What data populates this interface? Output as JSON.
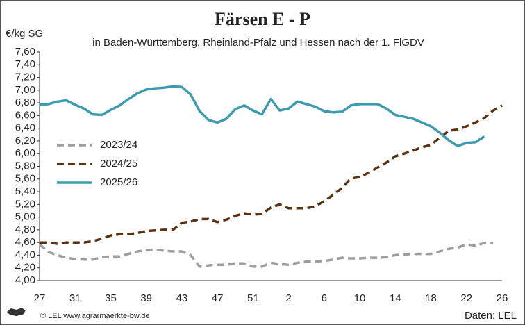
{
  "chart_data": {
    "type": "line",
    "title": "Färsen E - P",
    "subtitle": "in Baden-Württemberg, Rheinland-Pfalz und Hessen nach der 1. FlGDV",
    "y_label": "€/kg SG",
    "source": "Daten: LEL",
    "credit": "© LEL www.agrarmaerkte-bw.de",
    "legend": "left",
    "categories": [
      27,
      null,
      null,
      null,
      31,
      null,
      null,
      null,
      35,
      null,
      null,
      null,
      39,
      null,
      null,
      null,
      43,
      null,
      null,
      null,
      47,
      null,
      null,
      null,
      51,
      null,
      null,
      null,
      2,
      null,
      null,
      null,
      6,
      null,
      null,
      null,
      10,
      null,
      null,
      null,
      14,
      null,
      null,
      null,
      18,
      null,
      null,
      null,
      22,
      null,
      null,
      null,
      26
    ],
    "ylim": [
      4.0,
      7.6
    ],
    "yticks": [
      {
        "value": 4.0,
        "label": "4,00"
      },
      {
        "value": 4.2,
        "label": "4,20"
      },
      {
        "value": 4.4,
        "label": "4,40"
      },
      {
        "value": 4.6,
        "label": "4,60"
      },
      {
        "value": 4.8,
        "label": "4,80"
      },
      {
        "value": 5.0,
        "label": "5,00"
      },
      {
        "value": 5.2,
        "label": "5,20"
      },
      {
        "value": 5.4,
        "label": "5,40"
      },
      {
        "value": 5.6,
        "label": "5,60"
      },
      {
        "value": 5.8,
        "label": "5,80"
      },
      {
        "value": 6.0,
        "label": "6,00"
      },
      {
        "value": 6.2,
        "label": "6,20"
      },
      {
        "value": 6.4,
        "label": "6,40"
      },
      {
        "value": 6.6,
        "label": "6,60"
      },
      {
        "value": 6.8,
        "label": "6,80"
      },
      {
        "value": 7.0,
        "label": "7,00"
      },
      {
        "value": 7.2,
        "label": "7,20"
      },
      {
        "value": 7.4,
        "label": "7,40"
      },
      {
        "value": 7.6,
        "label": "7,60"
      }
    ],
    "series": [
      {
        "name": "2023/24",
        "color": "#9e9e9e",
        "dash": true,
        "values": [
          4.57,
          4.45,
          4.4,
          4.36,
          4.34,
          4.33,
          4.33,
          4.37,
          4.38,
          4.38,
          4.42,
          4.46,
          4.48,
          4.49,
          4.47,
          4.46,
          4.46,
          4.4,
          4.22,
          4.24,
          4.25,
          4.25,
          4.27,
          4.27,
          4.22,
          4.22,
          4.28,
          4.26,
          4.25,
          4.28,
          4.3,
          4.3,
          4.31,
          4.33,
          4.36,
          4.35,
          4.35,
          4.36,
          4.36,
          4.37,
          4.4,
          4.41,
          4.42,
          4.42,
          4.42,
          4.46,
          4.5,
          4.52,
          4.57,
          4.55,
          4.59,
          4.59,
          null
        ]
      },
      {
        "name": "2024/25",
        "color": "#5c3110",
        "dash": true,
        "values": [
          4.6,
          4.6,
          4.58,
          4.6,
          4.6,
          4.6,
          4.62,
          4.66,
          4.71,
          4.73,
          4.73,
          4.75,
          4.78,
          4.79,
          4.8,
          4.8,
          4.91,
          4.93,
          4.97,
          4.97,
          4.92,
          4.96,
          5.02,
          5.06,
          5.04,
          5.05,
          5.15,
          5.2,
          5.14,
          5.14,
          5.14,
          5.17,
          5.25,
          5.35,
          5.46,
          5.61,
          5.63,
          5.7,
          5.78,
          5.86,
          5.96,
          6.0,
          6.05,
          6.1,
          6.14,
          6.25,
          6.36,
          6.38,
          6.43,
          6.49,
          6.56,
          6.68,
          6.76
        ]
      },
      {
        "name": "2025/26",
        "color": "#3a9bb2",
        "dash": false,
        "values": [
          6.77,
          6.78,
          6.82,
          6.84,
          6.77,
          6.71,
          6.62,
          6.61,
          6.69,
          6.76,
          6.86,
          6.95,
          7.01,
          7.03,
          7.04,
          7.06,
          7.05,
          6.93,
          6.67,
          6.53,
          6.49,
          6.55,
          6.7,
          6.76,
          6.68,
          6.62,
          6.86,
          6.68,
          6.71,
          6.82,
          6.78,
          6.74,
          6.67,
          6.65,
          6.66,
          6.76,
          6.78,
          6.78,
          6.78,
          6.71,
          6.61,
          6.58,
          6.55,
          6.49,
          6.43,
          6.33,
          6.21,
          6.12,
          6.17,
          6.18,
          6.27,
          null,
          null
        ]
      }
    ]
  }
}
